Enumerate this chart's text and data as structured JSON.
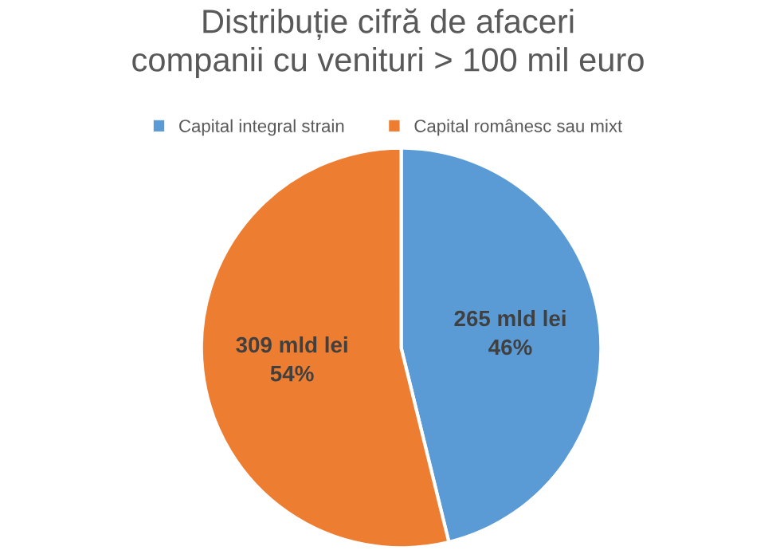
{
  "chart_data": {
    "type": "pie",
    "title": "Distribuție cifră de afaceri\ncompanii cu venituri > 100 mil euro",
    "categories": [
      "Capital integral strain",
      "Capital românesc sau mixt"
    ],
    "values": [
      265,
      309
    ],
    "colors": [
      "#5b9bd5",
      "#ed7d31"
    ],
    "value_labels": [
      "265 mld lei\n46%",
      "309 mld lei\n54%"
    ],
    "legend": "top"
  }
}
